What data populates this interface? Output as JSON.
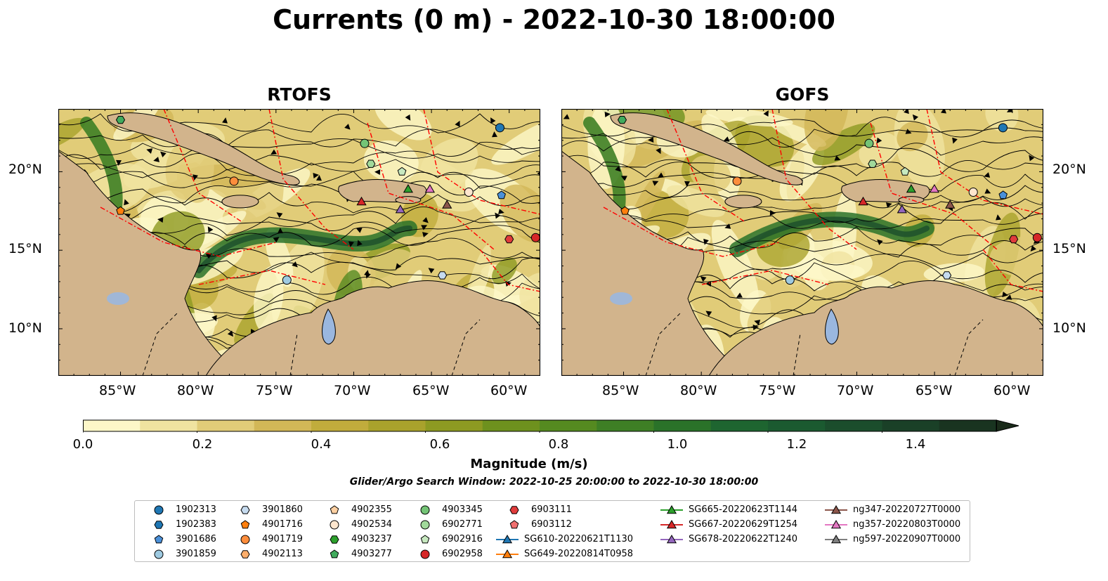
{
  "title": "Currents (0 m) - 2022-10-30 18:00:00",
  "panels": [
    {
      "title": "RTOFS"
    },
    {
      "title": "GOFS"
    }
  ],
  "axes": {
    "x_ticks": [
      "85°W",
      "80°W",
      "75°W",
      "70°W",
      "65°W",
      "60°W"
    ],
    "y_ticks": [
      "20°N",
      "15°N",
      "10°N"
    ]
  },
  "colorbar": {
    "label": "Magnitude (m/s)",
    "ticks": [
      "0.0",
      "0.2",
      "0.4",
      "0.6",
      "0.8",
      "1.0",
      "1.2",
      "1.4"
    ],
    "colors": [
      "#fdf7c8",
      "#f0e3a0",
      "#e1cc78",
      "#d2b757",
      "#c1ac3c",
      "#a9a22c",
      "#8d9a22",
      "#6e911e",
      "#558a20",
      "#3e7f25",
      "#2a7229",
      "#1e6530",
      "#1b5a30",
      "#1b4d2c",
      "#1a4027",
      "#193420",
      "#1a2b1a"
    ],
    "vmin": 0.0,
    "vmax": 1.6
  },
  "search_window": "Glider/Argo Search Window: 2022-10-25 20:00:00 to 2022-10-30 18:00:00",
  "map_colors": {
    "land": "#d2b48c",
    "lakes": "#9ab7df",
    "boundaries": "#ff0000"
  },
  "legend": [
    {
      "label": "1902313",
      "marker": "circle",
      "color": "#1f77b4"
    },
    {
      "label": "1902383",
      "marker": "hexagon",
      "color": "#1f77b4"
    },
    {
      "label": "3901686",
      "marker": "pentagon",
      "color": "#4a90d9"
    },
    {
      "label": "3901859",
      "marker": "circle",
      "color": "#9ecae1"
    },
    {
      "label": "3901860",
      "marker": "hexagon",
      "color": "#c6dbef"
    },
    {
      "label": "4901716",
      "marker": "pentagon",
      "color": "#ff7f0e"
    },
    {
      "label": "4901719",
      "marker": "circle",
      "color": "#fd8d3c"
    },
    {
      "label": "4902113",
      "marker": "hexagon",
      "color": "#fdae6b"
    },
    {
      "label": "4902355",
      "marker": "pentagon",
      "color": "#fdd0a2"
    },
    {
      "label": "4902534",
      "marker": "circle",
      "color": "#fee6ce"
    },
    {
      "label": "4903237",
      "marker": "hexagon",
      "color": "#2ca02c"
    },
    {
      "label": "4903277",
      "marker": "pentagon",
      "color": "#41ab5d"
    },
    {
      "label": "4903345",
      "marker": "circle",
      "color": "#74c476"
    },
    {
      "label": "6902771",
      "marker": "circle",
      "color": "#a1d99b"
    },
    {
      "label": "6902916",
      "marker": "pentagon",
      "color": "#c7e9c0"
    },
    {
      "label": "6902958",
      "marker": "circle",
      "color": "#d62728"
    },
    {
      "label": "6903111",
      "marker": "hexagon",
      "color": "#e03b3b"
    },
    {
      "label": "6903112",
      "marker": "pentagon",
      "color": "#f07070"
    },
    {
      "label": "SG610-20220621T1130",
      "marker": "triangle",
      "color": "#1f77b4"
    },
    {
      "label": "SG649-20220814T0958",
      "marker": "triangle",
      "color": "#ff7f0e"
    },
    {
      "label": "SG665-20220623T1144",
      "marker": "triangle",
      "color": "#2ca02c"
    },
    {
      "label": "SG667-20220629T1254",
      "marker": "triangle",
      "color": "#d62728"
    },
    {
      "label": "SG678-20220622T1240",
      "marker": "triangle",
      "color": "#9467bd"
    },
    {
      "label": "ng347-20220727T0000",
      "marker": "triangle",
      "color": "#8c564b"
    },
    {
      "label": "ng357-20220803T0000",
      "marker": "triangle",
      "color": "#e377c2"
    },
    {
      "label": "ng597-20220907T0000",
      "marker": "triangle",
      "color": "#7f7f7f"
    }
  ],
  "map_markers": [
    {
      "lon": -85.0,
      "lat": 23.3,
      "marker": "hexagon",
      "color": "#41ab5d"
    },
    {
      "lon": -60.6,
      "lat": 22.8,
      "marker": "circle",
      "color": "#1f77b4"
    },
    {
      "lon": -69.3,
      "lat": 21.8,
      "marker": "circle",
      "color": "#74c476"
    },
    {
      "lon": -68.9,
      "lat": 20.5,
      "marker": "hexagon",
      "color": "#a1d99b"
    },
    {
      "lon": -66.9,
      "lat": 20.0,
      "marker": "pentagon",
      "color": "#c7e9c0"
    },
    {
      "lon": -62.6,
      "lat": 18.7,
      "marker": "circle",
      "color": "#fee6ce"
    },
    {
      "lon": -60.5,
      "lat": 18.5,
      "marker": "pentagon",
      "color": "#4a90d9"
    },
    {
      "lon": -77.7,
      "lat": 19.4,
      "marker": "circle",
      "color": "#fd8d3c"
    },
    {
      "lon": -85.0,
      "lat": 17.5,
      "marker": "pentagon",
      "color": "#ff7f0e"
    },
    {
      "lon": -69.5,
      "lat": 18.1,
      "marker": "triangle",
      "color": "#d62728"
    },
    {
      "lon": -66.5,
      "lat": 18.9,
      "marker": "triangle",
      "color": "#2ca02c"
    },
    {
      "lon": -65.1,
      "lat": 18.9,
      "marker": "triangle",
      "color": "#e377c2"
    },
    {
      "lon": -67.0,
      "lat": 17.6,
      "marker": "triangle",
      "color": "#9467bd"
    },
    {
      "lon": -64.0,
      "lat": 17.9,
      "marker": "triangle",
      "color": "#8c564b"
    },
    {
      "lon": -60.0,
      "lat": 15.7,
      "marker": "hexagon",
      "color": "#e03b3b"
    },
    {
      "lon": -58.3,
      "lat": 15.8,
      "marker": "circle",
      "color": "#d62728"
    },
    {
      "lon": -74.3,
      "lat": 13.1,
      "marker": "circle",
      "color": "#9ecae1"
    },
    {
      "lon": -64.3,
      "lat": 13.4,
      "marker": "hexagon",
      "color": "#c6dbef"
    }
  ]
}
